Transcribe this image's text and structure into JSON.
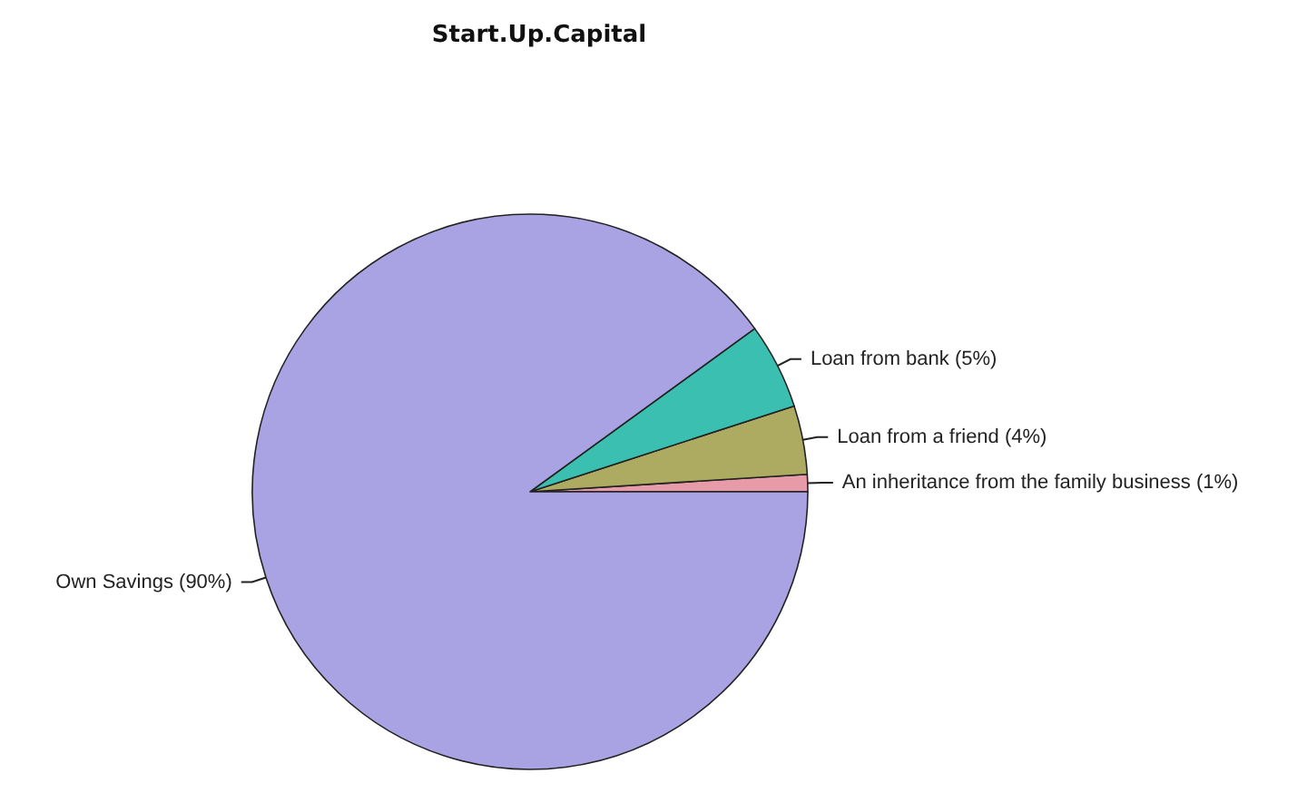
{
  "chart_data": {
    "type": "pie",
    "title": "Start.Up.Capital",
    "categories": [
      "An inheritance from the family business (1%)",
      "Loan from a friend (4%)",
      "Loan from bank (5%)",
      "Own Savings (90%)"
    ],
    "values": [
      1,
      4,
      5,
      90
    ],
    "colors": [
      "#e79aa8",
      "#adaa62",
      "#3bbfb0",
      "#aaa3e3"
    ],
    "legend": false
  }
}
